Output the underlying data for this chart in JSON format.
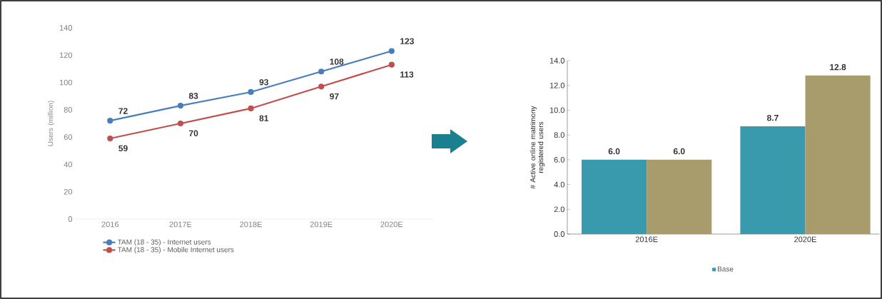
{
  "chart_data": [
    {
      "type": "line",
      "ylabel": "Users (million)",
      "categories": [
        "2016",
        "2017E",
        "2018E",
        "2019E",
        "2020E"
      ],
      "series": [
        {
          "name": "TAM (18 - 35) -  Internet users",
          "color": "#4a7ebb",
          "values": [
            72,
            83,
            93,
            108,
            123
          ]
        },
        {
          "name": "TAM (18 - 35) - Mobile Internet users",
          "color": "#c0504d",
          "values": [
            59,
            70,
            81,
            97,
            113
          ]
        }
      ],
      "ylim": [
        0,
        140
      ],
      "yticks": [
        0,
        20,
        40,
        60,
        80,
        100,
        120,
        140
      ],
      "data_labels": true,
      "marker": "circle",
      "legend": "bottom left"
    },
    {
      "type": "bar",
      "ylabel": "# Active online matrimony registered users",
      "categories": [
        "2016E",
        "2020E"
      ],
      "series": [
        {
          "name": "Base",
          "color": "#3a9aad",
          "values": [
            6.0,
            8.7
          ],
          "value_labels": [
            "6.0",
            "8.7"
          ]
        },
        {
          "color": "#a89c6c",
          "values": [
            6.0,
            12.8
          ],
          "value_labels": [
            "6.0",
            "12.8"
          ]
        }
      ],
      "ylim": [
        0,
        14
      ],
      "yticks": [
        {
          "value": 0,
          "label": "0.0"
        },
        {
          "value": 2,
          "label": "2.0"
        },
        {
          "value": 4,
          "label": "4.0"
        },
        {
          "value": 6,
          "label": "6.0"
        },
        {
          "value": 8,
          "label": "8.0"
        },
        {
          "value": 10,
          "label": "10.0"
        },
        {
          "value": 12,
          "label": "12.0"
        },
        {
          "value": 14,
          "label": "14.0"
        }
      ],
      "legend": "bottom"
    }
  ]
}
